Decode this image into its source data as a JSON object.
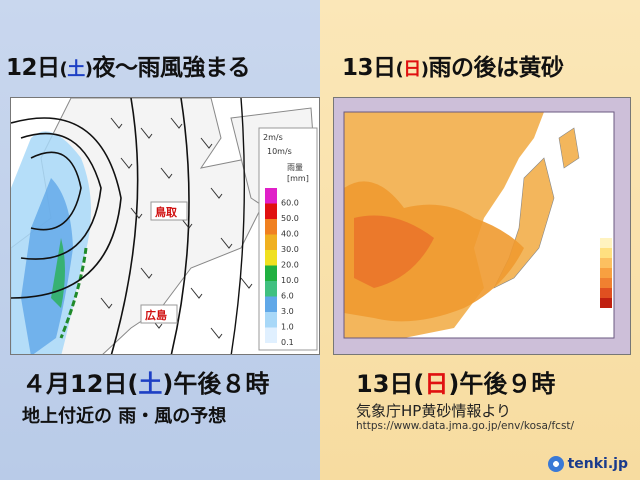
{
  "left": {
    "headline_day": "12日",
    "headline_weekday": "土",
    "headline_rest": "夜～雨風強まる",
    "caption_date": "４月12日",
    "caption_weekday": "土",
    "caption_time": "午後８時",
    "caption_sub": "地上付近の 雨・風の予想",
    "city_tottori": "鳥取",
    "city_hiroshima": "広島",
    "wind_legend_a": "2m/s",
    "wind_legend_b": "10m/s",
    "rain_legend_title": "雨量",
    "rain_legend_unit": "[mm]",
    "rain_levels": [
      {
        "label": "60.0",
        "color": "#e020c8"
      },
      {
        "label": "50.0",
        "color": "#e01010"
      },
      {
        "label": "40.0",
        "color": "#f08020"
      },
      {
        "label": "30.0",
        "color": "#f0b020"
      },
      {
        "label": "20.0",
        "color": "#f0e020"
      },
      {
        "label": "10.0",
        "color": "#20b040"
      },
      {
        "label": "6.0",
        "color": "#40c080"
      },
      {
        "label": "3.0",
        "color": "#60a8e8"
      },
      {
        "label": "1.0",
        "color": "#a8d8f8"
      },
      {
        "label": "0.1",
        "color": "#e0f0ff"
      }
    ]
  },
  "right": {
    "headline_day": "13日",
    "headline_weekday": "日",
    "headline_rest": "雨の後は黄砂",
    "caption_date": "13日",
    "caption_weekday": "日",
    "caption_time": "午後９時",
    "source": "気象庁HP黄砂情報より",
    "url": "https://www.data.jma.go.jp/env/kosa/fcst/"
  },
  "logo_text": "tenki.jp",
  "colors": {
    "sat": "#1d3fc4",
    "sun": "#e01010",
    "dust": "#f09a30",
    "sea": "#ffffff"
  }
}
